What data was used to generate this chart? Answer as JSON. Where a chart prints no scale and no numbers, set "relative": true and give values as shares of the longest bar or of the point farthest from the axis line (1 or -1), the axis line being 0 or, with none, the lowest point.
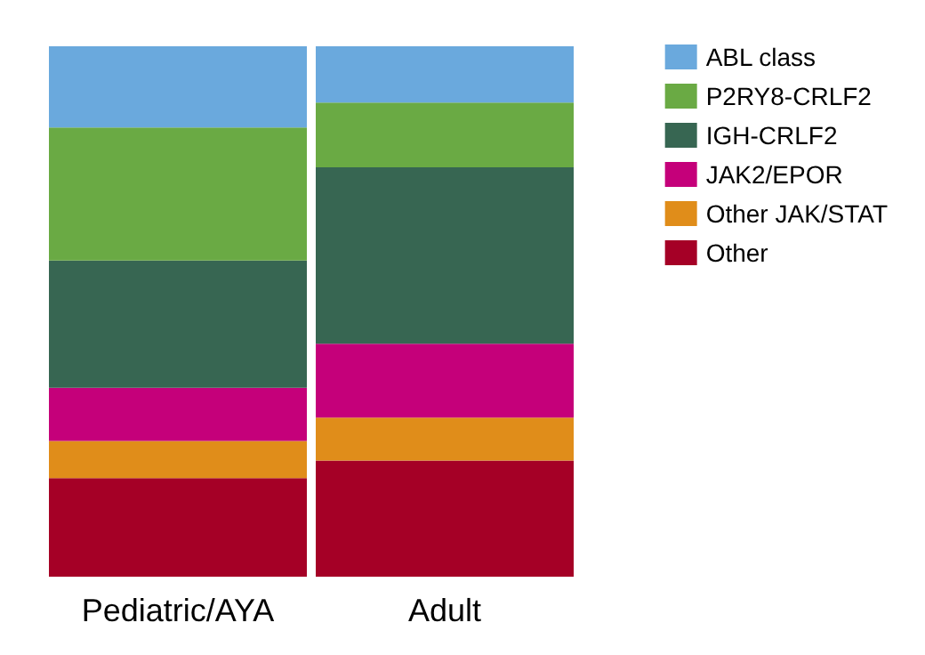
{
  "chart_data": {
    "type": "bar",
    "stacked": true,
    "relative": true,
    "categories": [
      "Pediatric/AYA",
      "Adult"
    ],
    "legend": "right",
    "series": [
      {
        "name": "Other",
        "color": "#a50026",
        "values": [
          0.186,
          0.219
        ]
      },
      {
        "name": "Other JAK/STAT",
        "color": "#e08d1a",
        "values": [
          0.07,
          0.081
        ]
      },
      {
        "name": "JAK2/EPOR",
        "color": "#c5007a",
        "values": [
          0.1,
          0.139
        ]
      },
      {
        "name": "IGH-CRLF2",
        "color": "#376652",
        "values": [
          0.24,
          0.333
        ]
      },
      {
        "name": "P2RY8-CRLF2",
        "color": "#6aaa44",
        "values": [
          0.251,
          0.122
        ]
      },
      {
        "name": "ABL class",
        "color": "#6aa9dd",
        "values": [
          0.153,
          0.106
        ]
      }
    ]
  }
}
